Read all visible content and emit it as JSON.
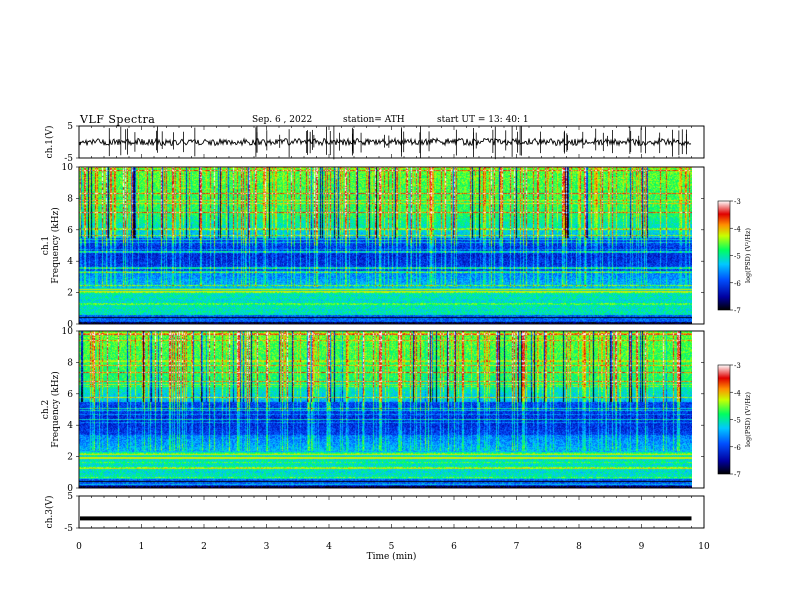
{
  "header": {
    "title": "VLF Spectra",
    "date": "Sep. 6 , 2022",
    "station": "station= ATH",
    "start": "start UT = 13: 40: 1"
  },
  "chart_data": [
    {
      "type": "line",
      "name": "ch1-waveform",
      "ylabel": "ch.1(V)",
      "ylim": [
        -5,
        5
      ],
      "yticks": [
        "5",
        "-5"
      ],
      "xlim": [
        0,
        10
      ],
      "x_end": 9.8,
      "baseline": 0,
      "line_color": "#000000"
    },
    {
      "type": "heatmap",
      "name": "ch1-spectrogram",
      "ylabel": "ch.1 Frequency (kHz)",
      "ylim": [
        0,
        10
      ],
      "yticks": [
        "0",
        "2",
        "4",
        "6",
        "8",
        "10"
      ],
      "xlim": [
        0,
        10
      ],
      "x_end": 9.8,
      "colorbar": {
        "label": "log(PSD) (V²/Hz)",
        "range": [
          -7,
          -3
        ],
        "ticks": [
          "-3",
          "-4",
          "-5",
          "-6",
          "-7"
        ]
      }
    },
    {
      "type": "heatmap",
      "name": "ch2-spectrogram",
      "ylabel": "ch.2 Frequency (kHz)",
      "ylim": [
        0,
        10
      ],
      "yticks": [
        "0",
        "2",
        "4",
        "6",
        "8",
        "10"
      ],
      "xlim": [
        0,
        10
      ],
      "x_end": 9.8,
      "colorbar": {
        "label": "log(PSD) (V²/Hz)",
        "range": [
          -7,
          -3
        ],
        "ticks": [
          "-3",
          "-4",
          "-5",
          "-6",
          "-7"
        ]
      }
    },
    {
      "type": "line",
      "name": "ch3-waveform",
      "ylabel": "ch.3(V)",
      "ylim": [
        -5,
        5
      ],
      "yticks": [
        "5",
        "-5"
      ],
      "xlim": [
        0,
        10
      ],
      "x_end": 9.8,
      "baseline": -2,
      "line_color": "#000000"
    }
  ],
  "x_axis": {
    "label": "Time (min)",
    "ticks": [
      "0",
      "1",
      "2",
      "3",
      "4",
      "5",
      "6",
      "7",
      "8",
      "9",
      "10"
    ]
  }
}
